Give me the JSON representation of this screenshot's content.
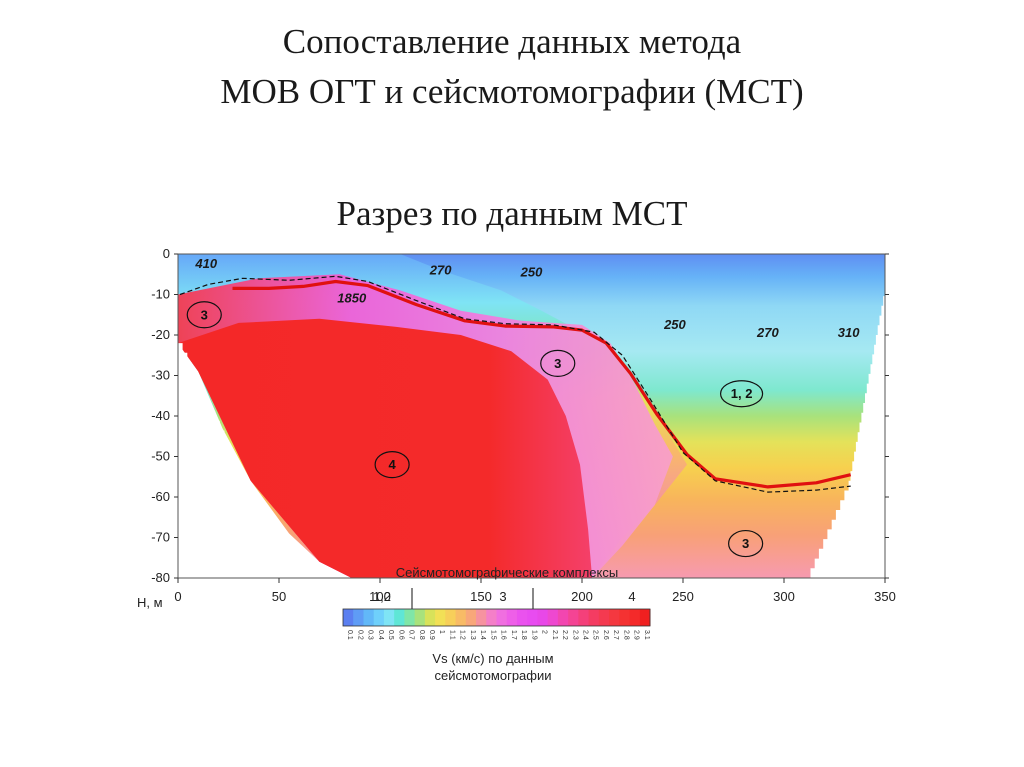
{
  "slide": {
    "title_line1": "Сопоставление данных метода",
    "title_line2": "МОВ ОГТ и сейсмотомографии (МСТ)",
    "subtitle": "Разрез по данным МСТ"
  },
  "chart_data": {
    "type": "heatmap",
    "x_axis": {
      "range": [
        0,
        350
      ],
      "ticks": [
        0,
        50,
        100,
        150,
        200,
        250,
        300,
        350
      ]
    },
    "y_axis": {
      "label": "H, м",
      "range": [
        -80,
        0
      ],
      "ticks": [
        0,
        -10,
        -20,
        -30,
        -40,
        -50,
        -60,
        -70,
        -80
      ]
    },
    "colorbar": {
      "label_line1": "Vs (км/с) по данным",
      "label_line2": "сейсмотомографии",
      "ticks": [
        "0.1",
        "0.2",
        "0.3",
        "0.4",
        "0.5",
        "0.6",
        "0.7",
        "0.8",
        "0.9",
        "1",
        "1.1",
        "1.2",
        "1.3",
        "1.4",
        "1.5",
        "1.6",
        "1.7",
        "1.8",
        "1.9",
        "2",
        "2.1",
        "2.2",
        "2.3",
        "2.4",
        "2.5",
        "2.6",
        "2.7",
        "2.8",
        "2.9",
        "3.1"
      ],
      "colors": [
        "#5b7ff0",
        "#5f9cf5",
        "#62b8f8",
        "#6fd0fb",
        "#7fe4f5",
        "#5fe6d6",
        "#7fe6a8",
        "#a8e27c",
        "#d8e25a",
        "#f2e056",
        "#f7cf5a",
        "#f8bb66",
        "#f8a77a",
        "#f693a0",
        "#f47fc8",
        "#f06fe0",
        "#ee5fe8",
        "#ea52ee",
        "#e84cf0",
        "#e848e8",
        "#ee48d0",
        "#f246b0",
        "#f44494",
        "#f4407a",
        "#f43c62",
        "#f43a50",
        "#f43840",
        "#f43232",
        "#f42a2a",
        "#f02020"
      ]
    },
    "complexes": {
      "title": "Сейсмотомографические комплексы",
      "labels": [
        "1,2",
        "3",
        "4"
      ]
    },
    "velocity_labels": [
      {
        "text": "410",
        "x": 14,
        "y": -3.5
      },
      {
        "text": "270",
        "x": 130,
        "y": -5
      },
      {
        "text": "250",
        "x": 175,
        "y": -5.5
      },
      {
        "text": "1850",
        "x": 86,
        "y": -12
      },
      {
        "text": "250",
        "x": 246,
        "y": -18.5
      },
      {
        "text": "270",
        "x": 292,
        "y": -20.5
      },
      {
        "text": "310",
        "x": 332,
        "y": -20.5
      }
    ],
    "complex_markers": [
      {
        "text": "3",
        "x": 13,
        "y": -15
      },
      {
        "text": "3",
        "x": 188,
        "y": -27
      },
      {
        "text": "1, 2",
        "x": 279,
        "y": -34.5
      },
      {
        "text": "4",
        "x": 106,
        "y": -52
      },
      {
        "text": "3",
        "x": 281,
        "y": -71.5
      }
    ],
    "boundary_red": {
      "x": [
        27,
        45,
        62,
        78,
        94,
        118,
        142,
        162,
        186,
        200,
        212,
        224,
        237,
        252,
        266,
        292,
        316,
        333
      ],
      "y": [
        -8.5,
        -8.5,
        -8,
        -6.8,
        -7.8,
        -12.5,
        -16.5,
        -17.8,
        -18,
        -18.8,
        -22,
        -29.5,
        -39.5,
        -49.5,
        -55.5,
        -57.5,
        -56.5,
        -54.5
      ]
    },
    "boundary_dashed": {
      "x": [
        1,
        15,
        32,
        55,
        78,
        94,
        118,
        142,
        162,
        186,
        206,
        220,
        234,
        250,
        266,
        292,
        316,
        333
      ],
      "y": [
        -10,
        -7.5,
        -6,
        -6.5,
        -5.5,
        -6.8,
        -11.5,
        -16,
        -17.2,
        -17.5,
        -19.3,
        -25,
        -36,
        -49,
        -56,
        -58.8,
        -58.3,
        -57.3
      ]
    }
  }
}
